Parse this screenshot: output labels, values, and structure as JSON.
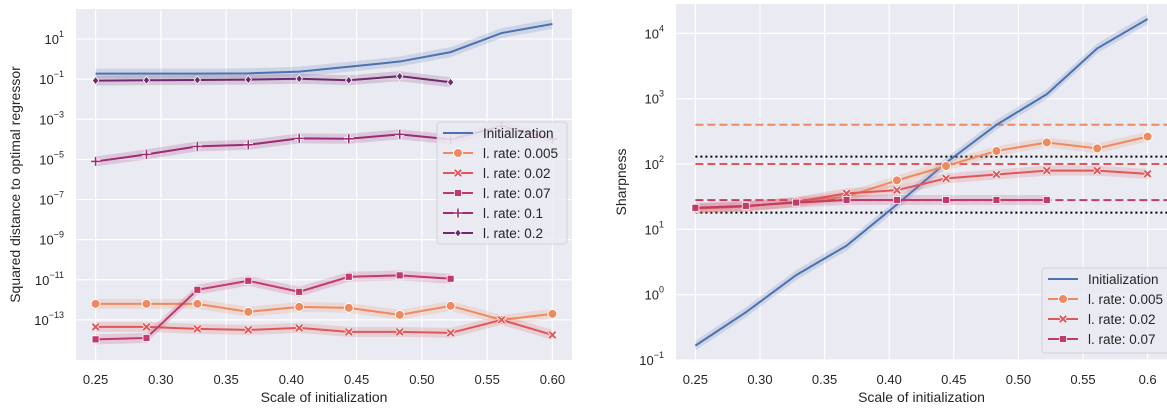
{
  "chart_data": [
    {
      "type": "line",
      "yscale": "log",
      "xlabel": "Scale of initialization",
      "ylabel": "Squared distance to optimal regressor",
      "xlim": [
        0.235,
        0.615
      ],
      "ylim_exp": [
        -15,
        2.5
      ],
      "xticks": [
        "0.25",
        "0.30",
        "0.35",
        "0.40",
        "0.45",
        "0.50",
        "0.55",
        "0.60"
      ],
      "xtick_values": [
        0.25,
        0.3,
        0.35,
        0.4,
        0.45,
        0.5,
        0.55,
        0.6
      ],
      "yticks_exp": [
        1,
        -1,
        -3,
        -5,
        -7,
        -9,
        -11,
        -13
      ],
      "grid": true,
      "legend_position": "center-right",
      "x": [
        0.25,
        0.289,
        0.328,
        0.367,
        0.406,
        0.444,
        0.483,
        0.522,
        0.561,
        0.6
      ],
      "series": [
        {
          "name": "Initialization",
          "color": "#4c72b0",
          "marker": "none",
          "y_log10": [
            -0.72,
            -0.72,
            -0.72,
            -0.71,
            -0.62,
            -0.38,
            -0.12,
            0.35,
            1.3,
            1.75
          ]
        },
        {
          "name": "l. rate: 0.005",
          "color": "#ee8a5f",
          "marker": "circle",
          "y_log10": [
            -12.2,
            -12.2,
            -12.2,
            -12.6,
            -12.35,
            -12.4,
            -12.75,
            -12.3,
            -13.0,
            -12.7
          ]
        },
        {
          "name": "l. rate: 0.02",
          "color": "#e0575a",
          "marker": "x",
          "y_log10": [
            -13.35,
            -13.35,
            -13.45,
            -13.5,
            -13.4,
            -13.6,
            -13.6,
            -13.65,
            -13.0,
            -13.75
          ]
        },
        {
          "name": "l. rate: 0.07",
          "color": "#c03a6a",
          "marker": "square",
          "y_log10": [
            -13.97,
            -13.9,
            -11.5,
            -11.05,
            -11.6,
            -10.85,
            -10.78,
            -10.95
          ]
        },
        {
          "name": "l. rate: 0.1",
          "color": "#9c2c73",
          "marker": "plus",
          "y_log10": [
            -5.1,
            -4.75,
            -4.35,
            -4.27,
            -3.95,
            -3.97,
            -3.75,
            -4.0,
            -3.35,
            -3.98
          ]
        },
        {
          "name": "l. rate: 0.2",
          "color": "#6e2a6a",
          "marker": "diamond",
          "y_log10": [
            -1.07,
            -1.05,
            -1.04,
            -1.02,
            -0.98,
            -1.05,
            -0.85,
            -1.15
          ]
        }
      ]
    },
    {
      "type": "line",
      "yscale": "log",
      "xlabel": "Scale of initialization",
      "ylabel": "Sharpness",
      "xlim": [
        0.235,
        0.615
      ],
      "ylim_exp": [
        -1,
        4.45
      ],
      "xticks": [
        "0.25",
        "0.30",
        "0.35",
        "0.40",
        "0.45",
        "0.50",
        "0.55",
        "0.6"
      ],
      "xtick_values": [
        0.25,
        0.3,
        0.35,
        0.4,
        0.45,
        0.5,
        0.55,
        0.6
      ],
      "yticks_exp": [
        4,
        3,
        2,
        1,
        0,
        -1
      ],
      "grid": true,
      "legend_position": "lower-right",
      "x": [
        0.25,
        0.289,
        0.328,
        0.367,
        0.406,
        0.444,
        0.483,
        0.522,
        0.561,
        0.6
      ],
      "series": [
        {
          "name": "Initialization",
          "color": "#4c72b0",
          "marker": "none",
          "y_log10": [
            -0.78,
            -0.27,
            0.3,
            0.75,
            1.38,
            2.02,
            2.6,
            3.07,
            3.77,
            4.22
          ]
        },
        {
          "name": "l. rate: 0.005",
          "color": "#ee8a5f",
          "marker": "circle",
          "y_log10": [
            1.32,
            1.35,
            1.42,
            1.5,
            1.75,
            1.97,
            2.2,
            2.33,
            2.24,
            2.42
          ]
        },
        {
          "name": "l. rate: 0.02",
          "color": "#e0575a",
          "marker": "x",
          "y_log10": [
            1.32,
            1.35,
            1.42,
            1.55,
            1.6,
            1.78,
            1.84,
            1.9,
            1.9,
            1.85
          ]
        },
        {
          "name": "l. rate: 0.07",
          "color": "#c03a6a",
          "marker": "square",
          "y_log10": [
            1.33,
            1.36,
            1.41,
            1.45,
            1.45,
            1.45,
            1.45,
            1.45
          ]
        }
      ],
      "hlines": [
        {
          "color": "#ee8a5f",
          "style": "dashed",
          "value": 400
        },
        {
          "color": "#000000",
          "style": "dotted",
          "value": 130
        },
        {
          "color": "#e0575a",
          "style": "dashed",
          "value": 100
        },
        {
          "color": "#c03a6a",
          "style": "dashed",
          "value": 28
        },
        {
          "color": "#000000",
          "style": "dotted",
          "value": 18
        }
      ]
    }
  ]
}
